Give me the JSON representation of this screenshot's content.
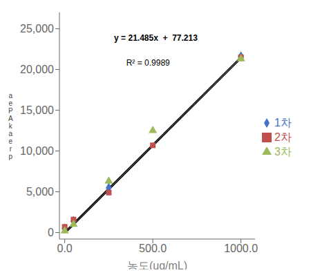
{
  "chart_data": {
    "type": "scatter",
    "xlabel": "농도(ug/mL)",
    "ylabel": "a\ne\nP\nA\nk\na\ne\nr\np",
    "annotations": [
      "y = 21.485x  +  77.213",
      "R² = 0.9989"
    ],
    "series": [
      {
        "type": "line",
        "color": "#000000",
        "x": [
          0,
          1000
        ],
        "y": [
          77.213,
          21562.213
        ]
      },
      {
        "type": "line",
        "color": "#000000",
        "x": [
          10,
          1010
        ],
        "y": [
          77.213,
          21562.213
        ]
      },
      {
        "type": "scatter",
        "name": "1차",
        "color": "#4472C4",
        "marker": "diamond",
        "x": [
          0,
          50,
          250,
          1000
        ],
        "y": [
          500,
          1400,
          5500,
          21600
        ]
      },
      {
        "type": "scatter",
        "name": "2차",
        "color": "#C0504D",
        "marker": "square",
        "x": [
          0,
          50,
          250,
          500,
          1000
        ],
        "y": [
          700,
          1600,
          4900,
          10700,
          21500
        ]
      },
      {
        "type": "scatter",
        "name": "3차",
        "color": "#9BBB59",
        "marker": "triangle",
        "x": [
          0,
          50,
          250,
          500,
          1000
        ],
        "y": [
          200,
          1000,
          6300,
          12500,
          21300
        ]
      }
    ],
    "xlim": [
      -30,
      1080
    ],
    "ylim": [
      -800,
      27000
    ],
    "xticks": [
      {
        "value": 0,
        "label": "0.0"
      },
      {
        "value": 500,
        "label": "500.0"
      },
      {
        "value": 1000,
        "label": "1000.0"
      }
    ],
    "yticks": [
      0,
      {
        "value": 5000,
        "label": "5,000"
      },
      {
        "value": 10000,
        "label": "10,000"
      },
      {
        "value": 15000,
        "label": "15,000"
      },
      {
        "value": 20000,
        "label": "20,000"
      },
      {
        "value": 25000,
        "label": "25,000"
      }
    ],
    "grid": false,
    "legend": "right"
  }
}
